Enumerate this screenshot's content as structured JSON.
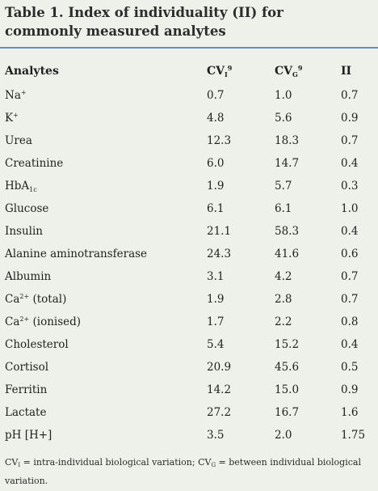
{
  "title": "Table 1. Index of individuality (II) for commonly measured analytes",
  "headers": {
    "analytes": "Analytes",
    "cvi": "CV",
    "cvi_sub": "I",
    "cvi_sup": "9",
    "cvg": "CV",
    "cvg_sub": "G",
    "cvg_sup": "9",
    "ii": "II"
  },
  "rows": [
    {
      "name": "Na",
      "sup": "+",
      "sub": "",
      "suffix": "",
      "cvi": "0.7",
      "cvg": "1.0",
      "ii": "0.7"
    },
    {
      "name": "K",
      "sup": "+",
      "sub": "",
      "suffix": "",
      "cvi": "4.8",
      "cvg": "5.6",
      "ii": "0.9"
    },
    {
      "name": "Urea",
      "sup": "",
      "sub": "",
      "suffix": "",
      "cvi": "12.3",
      "cvg": "18.3",
      "ii": "0.7"
    },
    {
      "name": "Creatinine",
      "sup": "",
      "sub": "",
      "suffix": "",
      "cvi": "6.0",
      "cvg": "14.7",
      "ii": "0.4"
    },
    {
      "name": "HbA",
      "sup": "",
      "sub": "1c",
      "suffix": "",
      "cvi": "1.9",
      "cvg": "5.7",
      "ii": "0.3"
    },
    {
      "name": "Glucose",
      "sup": "",
      "sub": "",
      "suffix": "",
      "cvi": "6.1",
      "cvg": "6.1",
      "ii": "1.0"
    },
    {
      "name": "Insulin",
      "sup": "",
      "sub": "",
      "suffix": "",
      "cvi": "21.1",
      "cvg": "58.3",
      "ii": "0.4"
    },
    {
      "name": "Alanine aminotransferase",
      "sup": "",
      "sub": "",
      "suffix": "",
      "cvi": "24.3",
      "cvg": "41.6",
      "ii": "0.6"
    },
    {
      "name": "Albumin",
      "sup": "",
      "sub": "",
      "suffix": "",
      "cvi": "3.1",
      "cvg": "4.2",
      "ii": "0.7"
    },
    {
      "name": "Ca",
      "sup": "2+",
      "sub": "",
      "suffix": " (total)",
      "cvi": "1.9",
      "cvg": "2.8",
      "ii": "0.7"
    },
    {
      "name": "Ca",
      "sup": "2+",
      "sub": "",
      "suffix": " (ionised)",
      "cvi": "1.7",
      "cvg": "2.2",
      "ii": "0.8"
    },
    {
      "name": "Cholesterol",
      "sup": "",
      "sub": "",
      "suffix": "",
      "cvi": "5.4",
      "cvg": "15.2",
      "ii": "0.4"
    },
    {
      "name": "Cortisol",
      "sup": "",
      "sub": "",
      "suffix": "",
      "cvi": "20.9",
      "cvg": "45.6",
      "ii": "0.5"
    },
    {
      "name": "Ferritin",
      "sup": "",
      "sub": "",
      "suffix": "",
      "cvi": "14.2",
      "cvg": "15.0",
      "ii": "0.9"
    },
    {
      "name": "Lactate",
      "sup": "",
      "sub": "",
      "suffix": "",
      "cvi": "27.2",
      "cvg": "16.7",
      "ii": "1.6"
    },
    {
      "name": "pH [H+]",
      "sup": "",
      "sub": "",
      "suffix": "",
      "cvi": "3.5",
      "cvg": "2.0",
      "ii": "1.75"
    }
  ],
  "footnote": {
    "cvi": "CV",
    "cvi_sub": "I",
    "cvi_def": " = intra-individual biological variation; ",
    "cvg": "CV",
    "cvg_sub": "G",
    "cvg_def": " = between individual biological variation."
  },
  "colors": {
    "background": "#eef1ea",
    "rule": "#5b8fc7"
  }
}
